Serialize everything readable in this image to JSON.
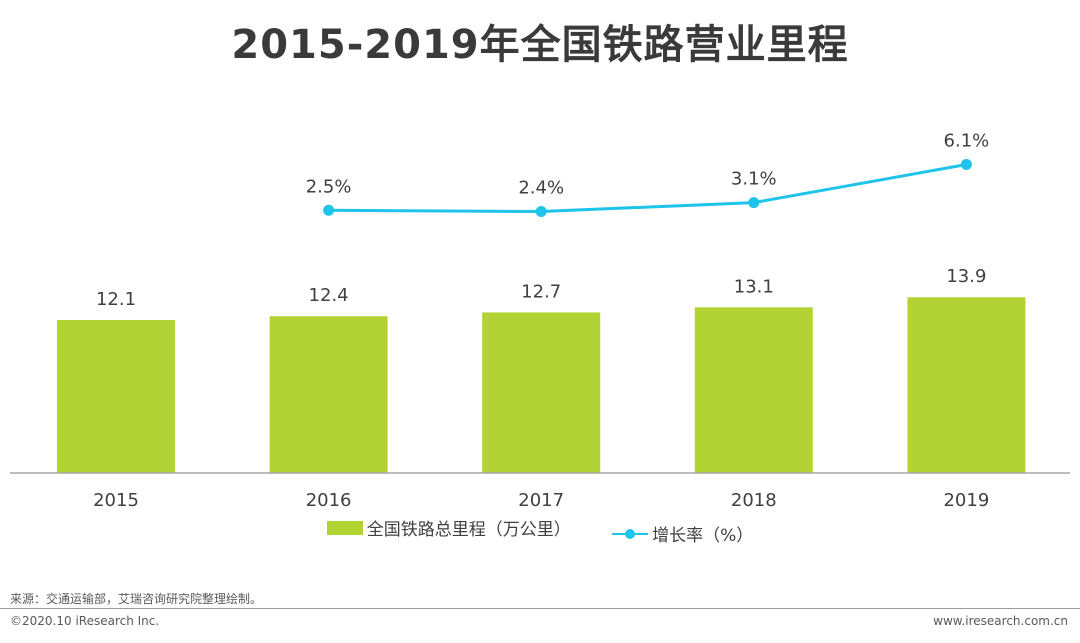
{
  "chart_data": {
    "type": "bar",
    "title": "2015-2019年全国铁路营业里程",
    "categories": [
      "2015",
      "2016",
      "2017",
      "2018",
      "2019"
    ],
    "series": [
      {
        "name": "全国铁路总里程（万公里）",
        "kind": "bar",
        "values": [
          12.1,
          12.4,
          12.7,
          13.1,
          13.9
        ],
        "labels": [
          "12.1",
          "12.4",
          "12.7",
          "13.1",
          "13.9"
        ],
        "color": "#b3d334"
      },
      {
        "name": "增长率（%）",
        "kind": "line",
        "values": [
          null,
          2.5,
          2.4,
          3.1,
          6.1
        ],
        "labels": [
          "",
          "2.5%",
          "2.4%",
          "3.1%",
          "6.1%"
        ],
        "color": "#1fc4ea"
      }
    ],
    "xlabel": "",
    "ylabel": "",
    "grid": false,
    "legend": "bottom"
  },
  "footer": {
    "source": "来源：交通运输部，艾瑞咨询研究院整理绘制。",
    "copyright": "©2020.10 iResearch Inc.",
    "website": "www.iresearch.com.cn"
  }
}
